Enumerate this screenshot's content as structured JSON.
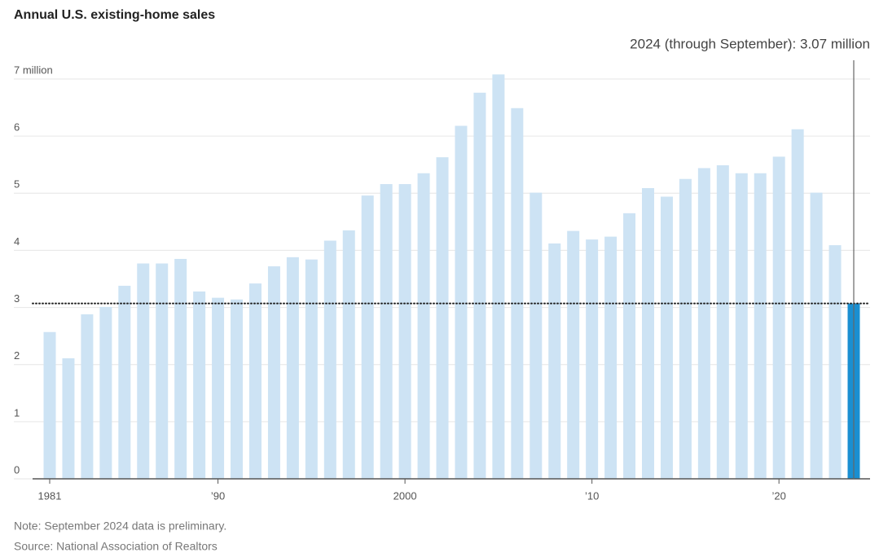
{
  "chart_data": {
    "type": "bar",
    "title": "Annual U.S. existing-home sales",
    "annotation": "2024 (through September): 3.07 million",
    "notes": [
      "Note: September 2024 data is preliminary.",
      "Source: National Association of Realtors"
    ],
    "categories": [
      "1981",
      null,
      null,
      null,
      null,
      null,
      null,
      null,
      null,
      "’90",
      null,
      null,
      null,
      null,
      null,
      null,
      null,
      null,
      null,
      "2000",
      null,
      null,
      null,
      null,
      null,
      null,
      null,
      null,
      null,
      "’10",
      null,
      null,
      null,
      null,
      null,
      null,
      null,
      null,
      null,
      "’20",
      null,
      null,
      null,
      null
    ],
    "values": [
      2.57,
      2.11,
      2.88,
      3.01,
      3.38,
      3.77,
      3.77,
      3.85,
      3.28,
      3.17,
      3.14,
      3.42,
      3.72,
      3.88,
      3.84,
      4.17,
      4.35,
      4.96,
      5.16,
      5.16,
      5.35,
      5.63,
      6.18,
      6.76,
      7.08,
      6.49,
      5.01,
      4.12,
      4.34,
      4.19,
      4.24,
      4.65,
      5.09,
      4.94,
      5.25,
      5.44,
      5.49,
      5.35,
      5.35,
      5.64,
      6.12,
      5.01,
      4.09,
      3.07
    ],
    "color": "#cde3f4",
    "last_color": "#1a8fd1",
    "ylim": [
      0,
      7
    ],
    "yticks": [
      0,
      1,
      2,
      3,
      4,
      5,
      6,
      {
        "value": 7,
        "label": "7 million"
      }
    ],
    "grid": true
  }
}
